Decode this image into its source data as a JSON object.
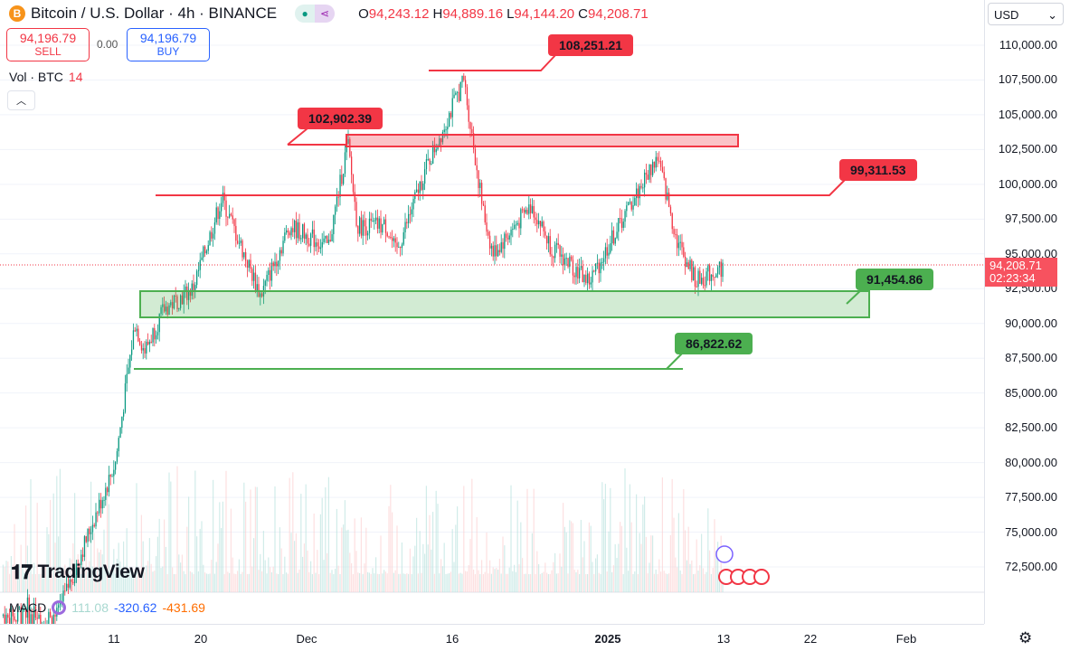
{
  "header": {
    "symbol_icon": "B",
    "title": "Bitcoin / U.S. Dollar · 4h · BINANCE",
    "ohlc": {
      "o_label": "O",
      "o": "94,243.12",
      "h_label": "H",
      "h": "94,889.16",
      "l_label": "L",
      "l": "94,144.20",
      "c_label": "C",
      "c": "94,208.71"
    }
  },
  "trade": {
    "sell_price": "94,196.79",
    "sell_label": "SELL",
    "spread": "0.00",
    "buy_price": "94,196.79",
    "buy_label": "BUY"
  },
  "volume": {
    "label": "Vol · BTC",
    "value": "14"
  },
  "currency": "USD",
  "price_axis": [
    "110,000.00",
    "107,500.00",
    "105,000.00",
    "102,500.00",
    "100,000.00",
    "97,500.00",
    "95,000.00",
    "92,500.00",
    "90,000.00",
    "87,500.00",
    "85,000.00",
    "82,500.00",
    "80,000.00",
    "77,500.00",
    "75,000.00",
    "72,500.00"
  ],
  "last_price": {
    "price": "94,208.71",
    "countdown": "02:23:34"
  },
  "time_axis": [
    "Nov",
    "11",
    "20",
    "Dec",
    "16",
    "2025",
    "13",
    "22",
    "Feb"
  ],
  "macd": {
    "label": "MACD",
    "v1": "111.08",
    "v2": "-320.62",
    "v3": "-431.69"
  },
  "logo": "TradingView",
  "annotations": {
    "high": "108,251.21",
    "resistance_top": "102,902.39",
    "resistance": "99,311.53",
    "support": "91,454.86",
    "support_low": "86,822.62"
  },
  "colors": {
    "up": "#089981",
    "down": "#f23645",
    "support": "#4caf50",
    "resistance": "#f23645"
  },
  "chart_data": {
    "type": "candlestick",
    "series_waypoints": [
      [
        "Nov 5",
        69000
      ],
      [
        "Nov 11",
        80000
      ],
      [
        "Nov 13",
        90000
      ],
      [
        "Nov 14",
        88000
      ],
      [
        "Nov 16",
        91000
      ],
      [
        "Nov 19",
        92500
      ],
      [
        "Nov 22",
        99000
      ],
      [
        "Nov 26",
        92000
      ],
      [
        "Nov 29",
        97000
      ],
      [
        "Dec 3",
        95500
      ],
      [
        "Dec 5",
        103000
      ],
      [
        "Dec 6",
        97000
      ],
      [
        "Dec 9",
        97000
      ],
      [
        "Dec 10",
        95000
      ],
      [
        "Dec 13",
        101000
      ],
      [
        "Dec 17",
        107500
      ],
      [
        "Dec 19",
        98000
      ],
      [
        "Dec 20",
        95000
      ],
      [
        "Dec 24",
        98500
      ],
      [
        "Dec 26",
        95500
      ],
      [
        "Dec 30",
        93000
      ],
      [
        "Jan 2",
        97000
      ],
      [
        "Jan 6",
        102000
      ],
      [
        "Jan 8",
        96000
      ],
      [
        "Jan 10",
        93000
      ],
      [
        "Jan 13",
        94200
      ]
    ],
    "ylim": [
      71500,
      111000
    ]
  }
}
